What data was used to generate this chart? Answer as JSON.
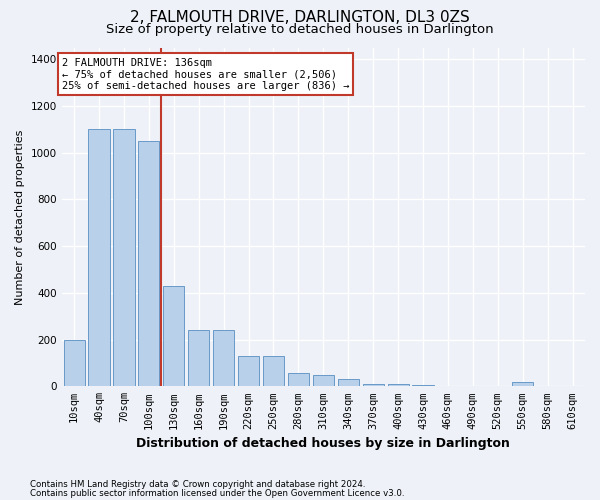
{
  "title": "2, FALMOUTH DRIVE, DARLINGTON, DL3 0ZS",
  "subtitle": "Size of property relative to detached houses in Darlington",
  "xlabel": "Distribution of detached houses by size in Darlington",
  "ylabel": "Number of detached properties",
  "categories": [
    "10sqm",
    "40sqm",
    "70sqm",
    "100sqm",
    "130sqm",
    "160sqm",
    "190sqm",
    "220sqm",
    "250sqm",
    "280sqm",
    "310sqm",
    "340sqm",
    "370sqm",
    "400sqm",
    "430sqm",
    "460sqm",
    "490sqm",
    "520sqm",
    "550sqm",
    "580sqm",
    "610sqm"
  ],
  "values": [
    200,
    1100,
    1100,
    1050,
    430,
    240,
    240,
    130,
    130,
    55,
    50,
    30,
    10,
    10,
    5,
    0,
    0,
    0,
    18,
    0,
    0
  ],
  "bar_color": "#b8d0ea",
  "bar_edge_color": "#6899c8",
  "vline_color": "#c0392b",
  "annotation_text": "2 FALMOUTH DRIVE: 136sqm\n← 75% of detached houses are smaller (2,506)\n25% of semi-detached houses are larger (836) →",
  "annotation_box_color": "#ffffff",
  "annotation_box_edge": "#c0392b",
  "ylim": [
    0,
    1450
  ],
  "yticks": [
    0,
    200,
    400,
    600,
    800,
    1000,
    1200,
    1400
  ],
  "footer1": "Contains HM Land Registry data © Crown copyright and database right 2024.",
  "footer2": "Contains public sector information licensed under the Open Government Licence v3.0.",
  "bg_color": "#eef2f8",
  "plot_bg": "#eef2f8",
  "grid_color": "#ffffff",
  "title_fontsize": 11,
  "subtitle_fontsize": 9.5,
  "ylabel_fontsize": 8,
  "xlabel_fontsize": 9,
  "tick_fontsize": 7.5
}
